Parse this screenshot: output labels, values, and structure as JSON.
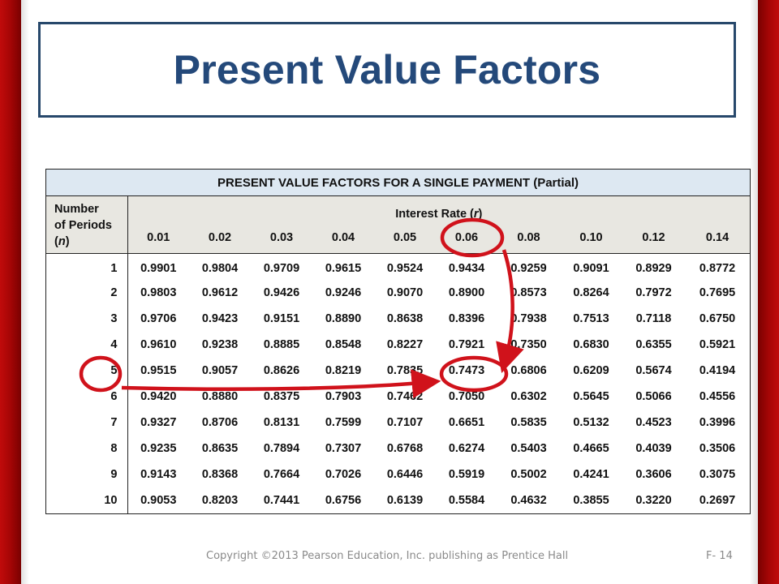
{
  "slide": {
    "title": "Present Value Factors"
  },
  "table": {
    "caption": "PRESENT VALUE FACTORS FOR A SINGLE PAYMENT (Partial)",
    "periods_header_line1": "Number",
    "periods_header_line2": "of Periods",
    "periods_header_line3_pre": "(",
    "periods_header_var": "n",
    "periods_header_line3_post": ")",
    "rate_header_pre": "Interest Rate (",
    "rate_header_var": "r",
    "rate_header_post": ")",
    "columns": [
      "0.01",
      "0.02",
      "0.03",
      "0.04",
      "0.05",
      "0.06",
      "0.08",
      "0.10",
      "0.12",
      "0.14"
    ],
    "rows": [
      {
        "n": "1",
        "values": [
          "0.9901",
          "0.9804",
          "0.9709",
          "0.9615",
          "0.9524",
          "0.9434",
          "0.9259",
          "0.9091",
          "0.8929",
          "0.8772"
        ]
      },
      {
        "n": "2",
        "values": [
          "0.9803",
          "0.9612",
          "0.9426",
          "0.9246",
          "0.9070",
          "0.8900",
          "0.8573",
          "0.8264",
          "0.7972",
          "0.7695"
        ]
      },
      {
        "n": "3",
        "values": [
          "0.9706",
          "0.9423",
          "0.9151",
          "0.8890",
          "0.8638",
          "0.8396",
          "0.7938",
          "0.7513",
          "0.7118",
          "0.6750"
        ]
      },
      {
        "n": "4",
        "values": [
          "0.9610",
          "0.9238",
          "0.8885",
          "0.8548",
          "0.8227",
          "0.7921",
          "0.7350",
          "0.6830",
          "0.6355",
          "0.5921"
        ]
      },
      {
        "n": "5",
        "values": [
          "0.9515",
          "0.9057",
          "0.8626",
          "0.8219",
          "0.7835",
          "0.7473",
          "0.6806",
          "0.6209",
          "0.5674",
          "0.4194"
        ]
      },
      {
        "n": "6",
        "values": [
          "0.9420",
          "0.8880",
          "0.8375",
          "0.7903",
          "0.7462",
          "0.7050",
          "0.6302",
          "0.5645",
          "0.5066",
          "0.4556"
        ]
      },
      {
        "n": "7",
        "values": [
          "0.9327",
          "0.8706",
          "0.8131",
          "0.7599",
          "0.7107",
          "0.6651",
          "0.5835",
          "0.5132",
          "0.4523",
          "0.3996"
        ]
      },
      {
        "n": "8",
        "values": [
          "0.9235",
          "0.8635",
          "0.7894",
          "0.7307",
          "0.6768",
          "0.6274",
          "0.5403",
          "0.4665",
          "0.4039",
          "0.3506"
        ]
      },
      {
        "n": "9",
        "values": [
          "0.9143",
          "0.8368",
          "0.7664",
          "0.7026",
          "0.6446",
          "0.5919",
          "0.5002",
          "0.4241",
          "0.3606",
          "0.3075"
        ]
      },
      {
        "n": "10",
        "values": [
          "0.9053",
          "0.8203",
          "0.7441",
          "0.6756",
          "0.6139",
          "0.5584",
          "0.4632",
          "0.3855",
          "0.3220",
          "0.2697"
        ]
      }
    ]
  },
  "annotations": {
    "highlight_color": "#d0121b",
    "circled_rate": "0.06",
    "circled_period": "5",
    "circled_value": "0.7473"
  },
  "footer": {
    "copyright": "Copyright ©2013 Pearson Education, Inc. publishing as Prentice Hall",
    "page": "F- 14"
  },
  "colors": {
    "side_bar": "#b00808",
    "title_text": "#24497a",
    "title_border": "#27486b",
    "caption_bg": "#dde8f2",
    "header_bg": "#e8e7e1"
  }
}
